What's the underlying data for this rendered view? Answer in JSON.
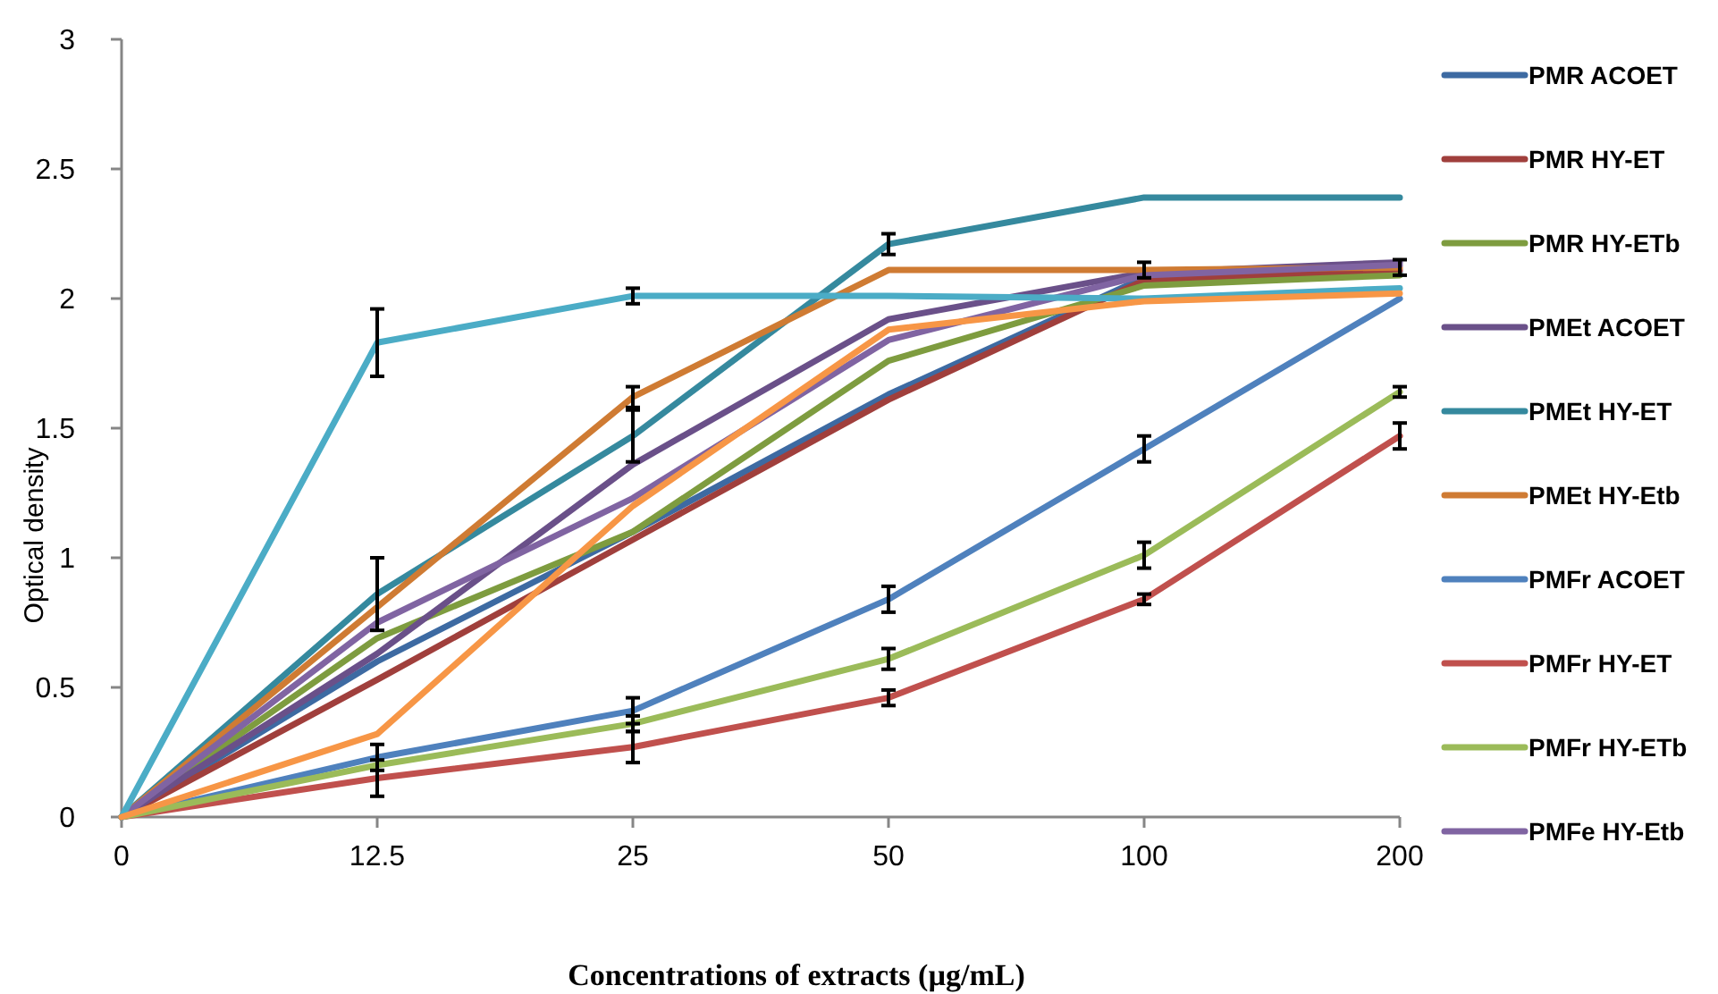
{
  "chart_data": {
    "type": "line",
    "xlabel": "Concentrations of extracts (µg/mL)",
    "ylabel": "Optical density",
    "categories": [
      "0",
      "12.5",
      "25",
      "50",
      "100",
      "200"
    ],
    "ylim": [
      0,
      3
    ],
    "yticks": [
      0,
      0.5,
      1,
      1.5,
      2,
      2.5,
      3
    ],
    "grid": false,
    "legend": "right",
    "marker": "none",
    "line_style": "solid",
    "series": [
      {
        "name": "PMR ACOET",
        "color": "#3d6aa2",
        "values": [
          0,
          0.6,
          1.1,
          1.63,
          2.08,
          2.1
        ]
      },
      {
        "name": "PMR HY-ET",
        "color": "#a03f3c",
        "values": [
          0,
          0.53,
          1.07,
          1.61,
          2.07,
          2.11
        ]
      },
      {
        "name": "PMR HY-ETb",
        "color": "#7e9c3f",
        "values": [
          0,
          0.69,
          1.1,
          1.76,
          2.05,
          2.09
        ]
      },
      {
        "name": "PMEt ACOET",
        "color": "#6a5089",
        "values": [
          0,
          0.63,
          1.36,
          1.92,
          2.1,
          2.14
        ]
      },
      {
        "name": "PMEt HY-ET",
        "color": "#35899e",
        "values": [
          0,
          0.86,
          1.47,
          2.21,
          2.39,
          2.39
        ],
        "errors": [
          null,
          0.14,
          0.1,
          0.04,
          null,
          null
        ]
      },
      {
        "name": "PMEt HY-Etb",
        "color": "#cf7b33",
        "values": [
          0,
          0.81,
          1.62,
          2.11,
          2.11,
          2.12
        ],
        "errors": [
          null,
          null,
          0.04,
          null,
          0.03,
          0.03
        ]
      },
      {
        "name": "PMFr ACOET",
        "color": "#4f81bd",
        "values": [
          0,
          0.23,
          0.41,
          0.84,
          1.42,
          2.0
        ],
        "errors": [
          null,
          0.05,
          0.05,
          0.05,
          0.05,
          null
        ]
      },
      {
        "name": "PMFr HY-ET",
        "color": "#c0504d",
        "values": [
          0,
          0.15,
          0.27,
          0.46,
          0.84,
          1.47
        ],
        "errors": [
          null,
          0.07,
          0.06,
          0.03,
          0.02,
          0.05
        ]
      },
      {
        "name": "PMFr HY-ETb",
        "color": "#9bbb59",
        "values": [
          0,
          0.2,
          0.36,
          0.61,
          1.01,
          1.64
        ],
        "errors": [
          null,
          null,
          0.03,
          0.04,
          0.05,
          0.02
        ]
      },
      {
        "name": "PMFe HY-Etb",
        "color": "#8064a2",
        "values": [
          0,
          0.75,
          1.23,
          1.84,
          2.09,
          2.13
        ]
      },
      {
        "color": "#4bacc6",
        "values": [
          0,
          1.83,
          2.01,
          2.01,
          2.0,
          2.04
        ],
        "errors": [
          null,
          0.13,
          0.03,
          null,
          null,
          null
        ]
      },
      {
        "color": "#f79646",
        "values": [
          0,
          0.32,
          1.2,
          1.88,
          1.99,
          2.02
        ]
      }
    ]
  }
}
